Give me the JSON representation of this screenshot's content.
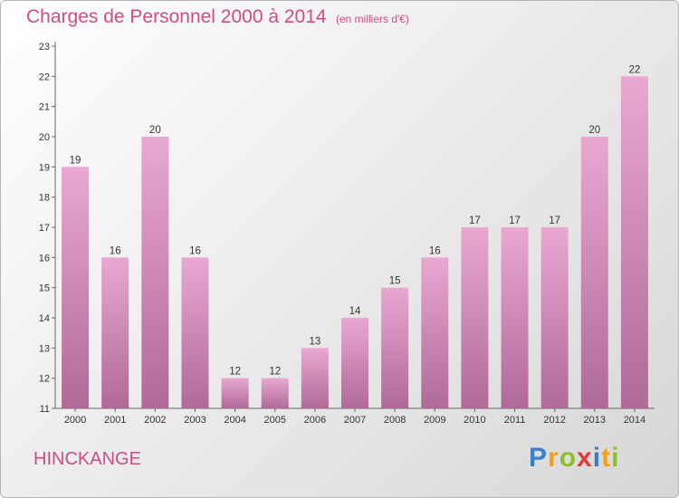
{
  "header": {
    "title": "Charges de Personnel 2000 à 2014",
    "subtitle": "(en milliers d'€)"
  },
  "footer": {
    "commune": "HINCKANGE",
    "logo_text": "Proxiti",
    "logo_letters": [
      {
        "ch": "P",
        "color": "#3a7fc8"
      },
      {
        "ch": "r",
        "color": "#f2a019"
      },
      {
        "ch": "o",
        "color": "#8cbf2e"
      },
      {
        "ch": "x",
        "color": "#e2383a"
      },
      {
        "ch": "i",
        "color": "#3a7fc8"
      },
      {
        "ch": "t",
        "color": "#f2a019"
      },
      {
        "ch": "i",
        "color": "#8cbf2e"
      }
    ]
  },
  "colors": {
    "title": "#d04a8a",
    "bar_light": "#e8a8d0",
    "bar_dark": "#b06a98"
  },
  "chart_data": {
    "type": "bar",
    "categories": [
      "2000",
      "2001",
      "2002",
      "2003",
      "2004",
      "2005",
      "2006",
      "2007",
      "2008",
      "2009",
      "2010",
      "2011",
      "2012",
      "2013",
      "2014"
    ],
    "values": [
      19,
      16,
      20,
      16,
      12,
      12,
      13,
      14,
      15,
      16,
      17,
      17,
      17,
      20,
      22
    ],
    "ylim": [
      11,
      23
    ],
    "yticks": [
      11,
      12,
      13,
      14,
      15,
      16,
      17,
      18,
      19,
      20,
      21,
      22,
      23
    ],
    "grid": false,
    "legend": "none"
  }
}
